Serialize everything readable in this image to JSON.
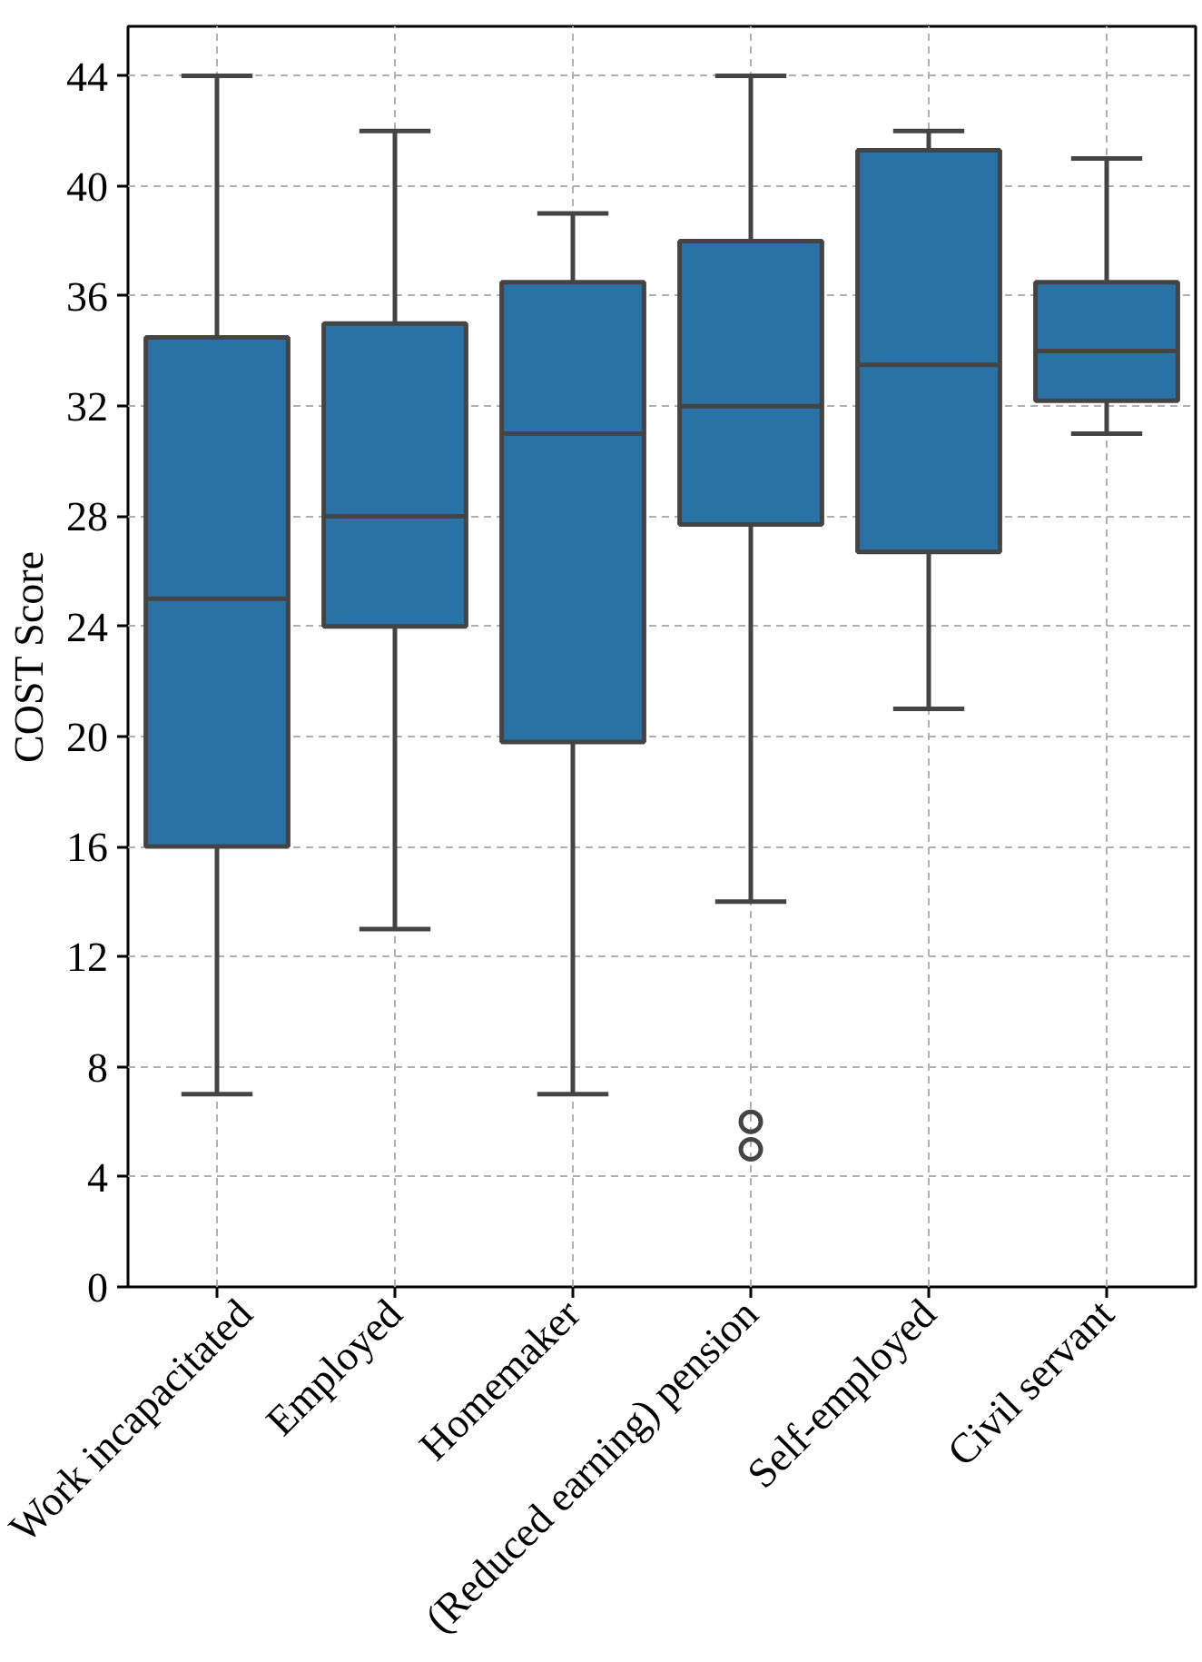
{
  "chart_data": {
    "type": "box",
    "ylabel": "COST Score",
    "categories": [
      "Work incapacitated",
      "Employed",
      "Homemaker",
      "(Reduced earning) pension",
      "Self-employed",
      "Civil servant"
    ],
    "color": "#2a72a6",
    "boxes": [
      {
        "low": 7,
        "q1": 16,
        "median": 25,
        "q3": 34.5,
        "high": 44
      },
      {
        "low": 13,
        "q1": 24,
        "median": 28,
        "q3": 35,
        "high": 42
      },
      {
        "low": 7,
        "q1": 19.8,
        "median": 31,
        "q3": 36.5,
        "high": 39
      },
      {
        "low": 14,
        "q1": 27.7,
        "median": 32,
        "q3": 38,
        "high": 44,
        "outliers": [
          5,
          6
        ]
      },
      {
        "low": 21,
        "q1": 26.7,
        "median": 33.5,
        "q3": 41.3,
        "high": 42
      },
      {
        "low": 31,
        "q1": 32.2,
        "median": 34,
        "q3": 36.5,
        "high": 41
      }
    ],
    "ylim": [
      0,
      45.8
    ],
    "yticks": [
      0,
      4,
      8,
      12,
      16,
      20,
      24,
      28,
      32,
      36,
      40,
      44
    ],
    "grid": true
  }
}
